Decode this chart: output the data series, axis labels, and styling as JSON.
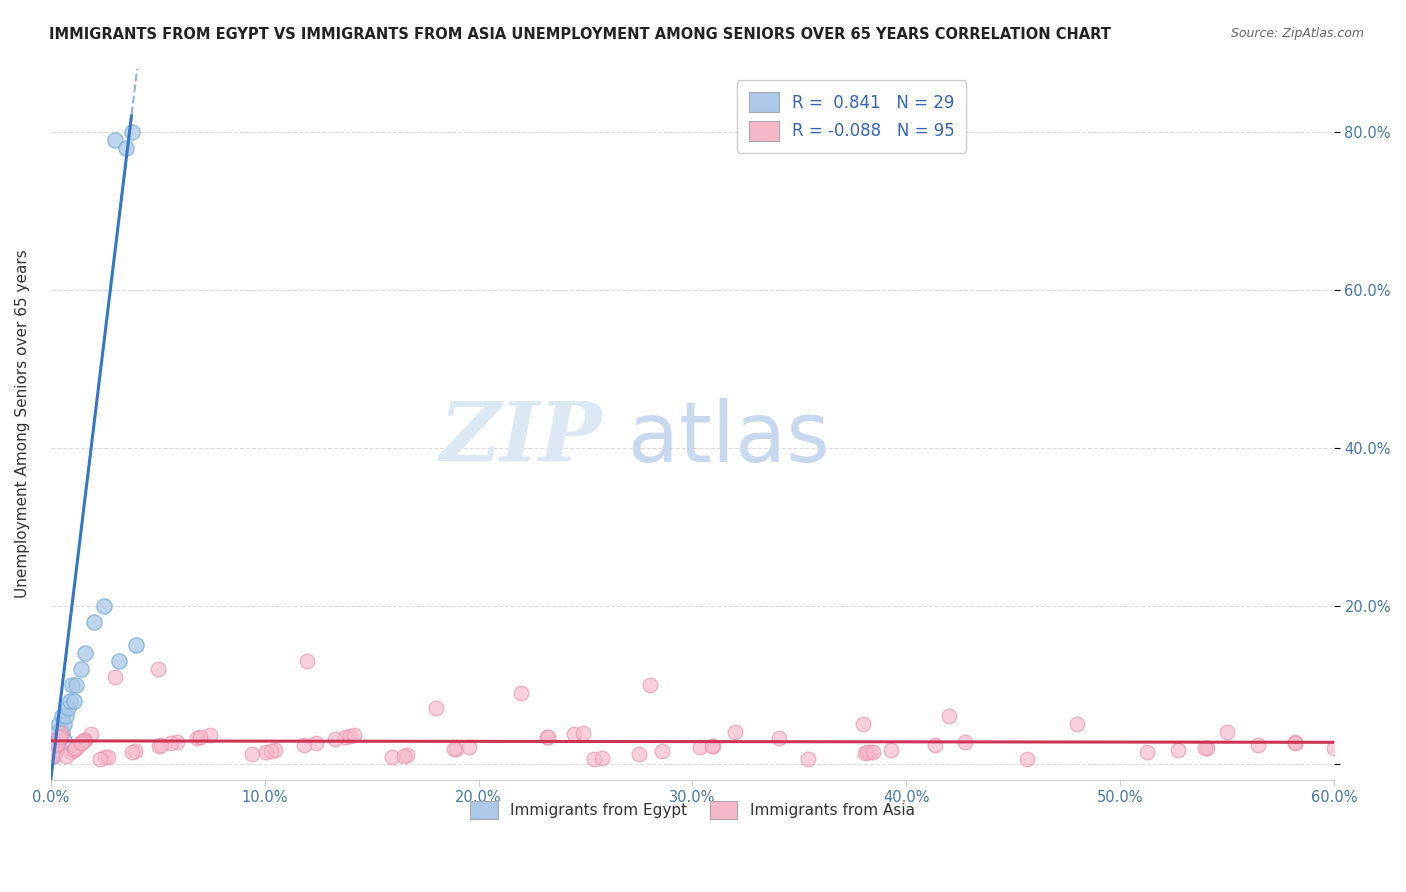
{
  "title": "IMMIGRANTS FROM EGYPT VS IMMIGRANTS FROM ASIA UNEMPLOYMENT AMONG SENIORS OVER 65 YEARS CORRELATION CHART",
  "source": "Source: ZipAtlas.com",
  "ylabel": "Unemployment Among Seniors over 65 years",
  "xlim": [
    0.0,
    0.6
  ],
  "ylim": [
    -0.02,
    0.88
  ],
  "xticks": [
    0.0,
    0.1,
    0.2,
    0.3,
    0.4,
    0.5,
    0.6
  ],
  "xticklabels": [
    "0.0%",
    "10.0%",
    "20.0%",
    "30.0%",
    "40.0%",
    "50.0%",
    "60.0%"
  ],
  "yticks_left": [
    0.0,
    0.2,
    0.4,
    0.6,
    0.8
  ],
  "yticklabels_left": [
    "",
    "",
    "",
    "",
    ""
  ],
  "yticks_right": [
    0.0,
    0.2,
    0.4,
    0.6,
    0.8
  ],
  "yticklabels_right": [
    "",
    "20.0%",
    "40.0%",
    "60.0%",
    "80.0%"
  ],
  "legend_R_egypt": "0.841",
  "legend_N_egypt": "29",
  "legend_R_asia": "-0.088",
  "legend_N_asia": "95",
  "legend_label_egypt": "Immigrants from Egypt",
  "legend_label_asia": "Immigrants from Asia",
  "egypt_color": "#aac8e8",
  "egypt_edge_color": "#7aafd4",
  "egypt_trend_color": "#3377cc",
  "asia_color": "#f5b8c8",
  "asia_edge_color": "#e896b0",
  "asia_trend_color": "#cc3355",
  "watermark_zip": "ZIP",
  "watermark_atlas": "atlas",
  "background_color": "#ffffff",
  "grid_color": "#cccccc",
  "title_color": "#222222",
  "source_color": "#666666",
  "tick_color": "#4477aa",
  "ylabel_color": "#333333"
}
